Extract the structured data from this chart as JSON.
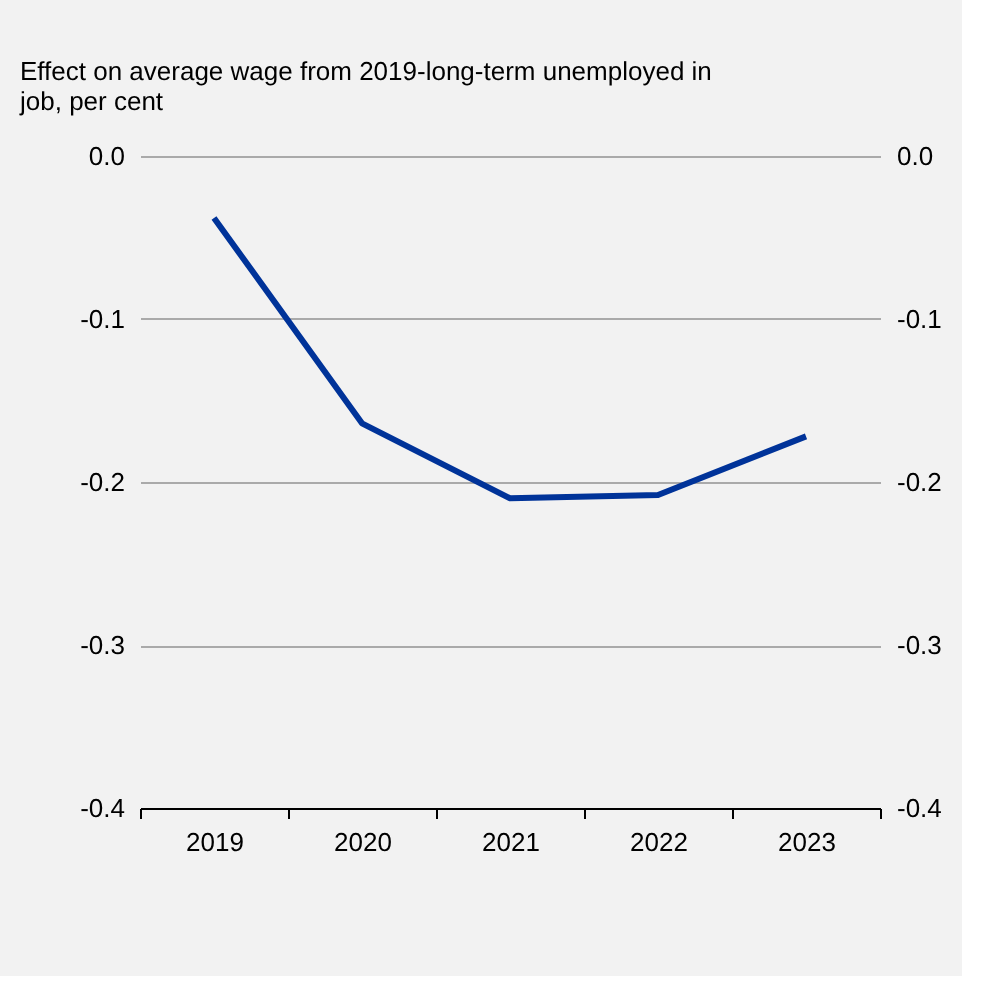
{
  "chart_data": {
    "type": "line",
    "title": "Effect on average wage from 2019-long-term unemployed in job, per cent",
    "categories": [
      "2019",
      "2020",
      "2021",
      "2022",
      "2023"
    ],
    "series": [
      {
        "color": "#003399",
        "values": [
          -0.038,
          -0.164,
          -0.21,
          -0.208,
          -0.172
        ]
      }
    ],
    "ylim": [
      -0.4,
      0.0
    ],
    "yticks": [
      {
        "value": -0.4,
        "label": "-0.4"
      },
      {
        "value": -0.3,
        "label": "-0.3"
      },
      {
        "value": -0.2,
        "label": "-0.2"
      },
      {
        "value": -0.1,
        "label": "-0.1"
      },
      {
        "value": 0.0,
        "label": "0.0"
      }
    ],
    "y2lim": [
      -0.4,
      0.0
    ],
    "y2ticks": [
      {
        "value": -0.4,
        "label": "-0.4"
      },
      {
        "value": -0.3,
        "label": "-0.3"
      },
      {
        "value": -0.2,
        "label": "-0.2"
      },
      {
        "value": -0.1,
        "label": "-0.1"
      },
      {
        "value": 0.0,
        "label": "0.0"
      }
    ],
    "grid": "y",
    "legend": false,
    "marker": "none",
    "line_style": "solid"
  }
}
